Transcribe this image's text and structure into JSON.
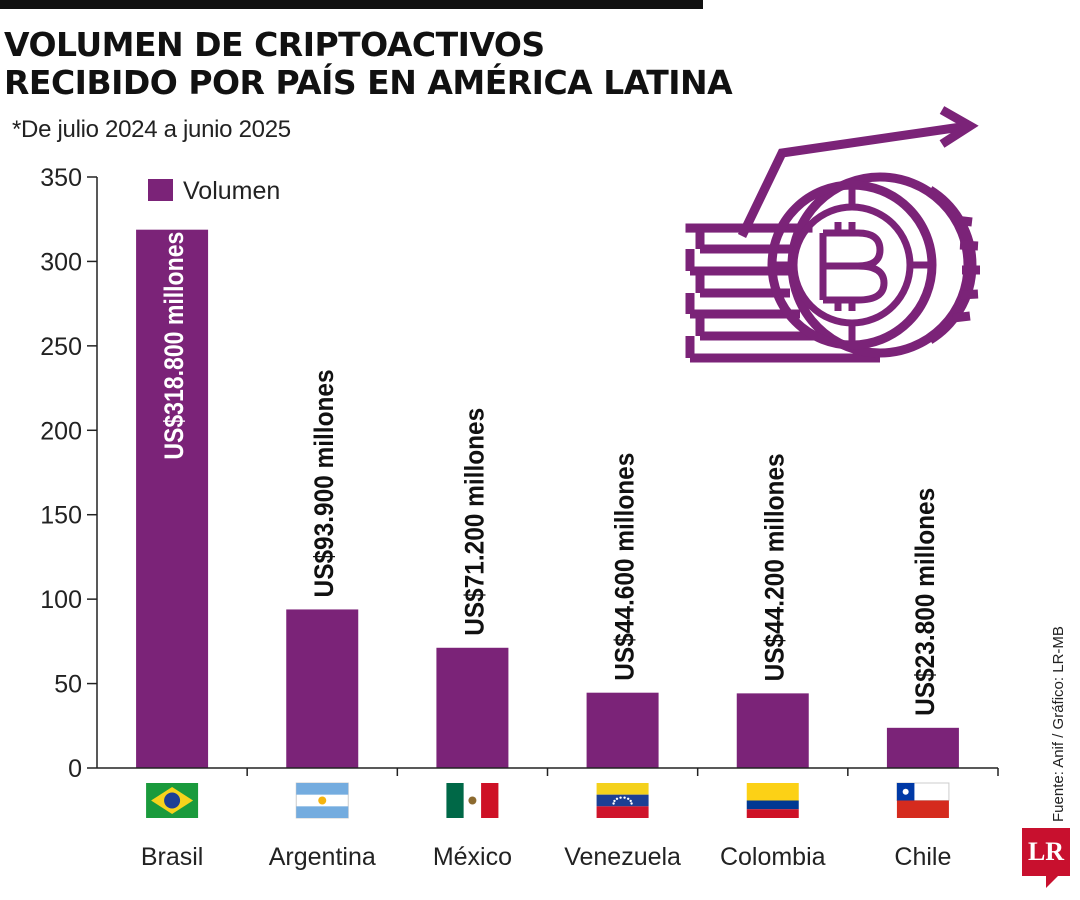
{
  "header": {
    "title_line1": "VOLUMEN DE CRIPTOACTIVOS",
    "title_line2": "RECIBIDO POR PAÍS EN AMÉRICA LATINA",
    "subtitle": "*De julio 2024 a junio 2025"
  },
  "chart_data": {
    "type": "bar",
    "categories": [
      "Brasil",
      "Argentina",
      "México",
      "Venezuela",
      "Colombia",
      "Chile"
    ],
    "series": [
      {
        "name": "Volumen",
        "values": [
          318.8,
          93.9,
          71.2,
          44.6,
          44.2,
          23.8
        ]
      }
    ],
    "data_labels": [
      "US$318.800 millones",
      "US$93.900 millones",
      "US$71.200 millones",
      "US$44.600 millones",
      "US$44.200 millones",
      "US$23.800 millones"
    ],
    "y_ticks": [
      "0",
      "50",
      "100",
      "150",
      "200",
      "250",
      "300",
      "350"
    ],
    "ylim": [
      0,
      350
    ],
    "legend": "top-left",
    "grid": false,
    "bar_color": "#7b2378"
  },
  "flags": [
    "brazil-flag-icon",
    "argentina-flag-icon",
    "mexico-flag-icon",
    "venezuela-flag-icon",
    "colombia-flag-icon",
    "chile-flag-icon"
  ],
  "decoration": {
    "icon": "bitcoin-coins-arrow-icon",
    "color": "#7b2378"
  },
  "footer": {
    "source": "Fuente: Anif / Gráfico: LR-MB",
    "logo_text": "LR"
  }
}
